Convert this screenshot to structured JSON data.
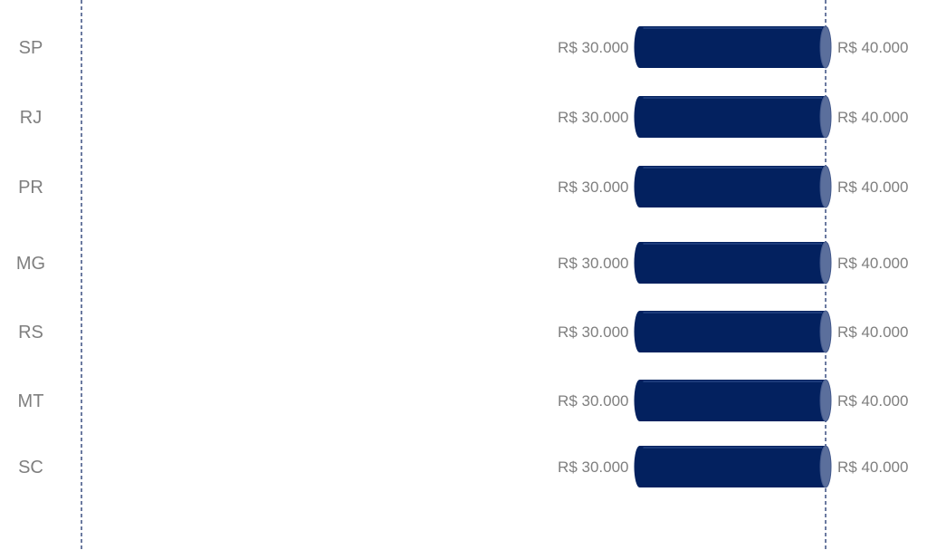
{
  "chart_data": {
    "type": "bar",
    "orientation": "horizontal",
    "style": "cylinder range bars",
    "categories": [
      "SP",
      "RJ",
      "PR",
      "MG",
      "RS",
      "MT",
      "SC"
    ],
    "series": [
      {
        "values": [
          [
            30000,
            40000
          ],
          [
            30000,
            40000
          ],
          [
            30000,
            40000
          ],
          [
            30000,
            40000
          ],
          [
            30000,
            40000
          ],
          [
            30000,
            40000
          ],
          [
            30000,
            40000
          ]
        ]
      }
    ],
    "start_labels": [
      "R$ 30.000",
      "R$ 30.000",
      "R$ 30.000",
      "R$ 30.000",
      "R$ 30.000",
      "R$ 30.000",
      "R$ 30.000"
    ],
    "end_labels": [
      "R$ 40.000",
      "R$ 40.000",
      "R$ 40.000",
      "R$ 40.000",
      "R$ 40.000",
      "R$ 40.000",
      "R$ 40.000"
    ],
    "reference_lines": [
      0,
      40000
    ],
    "xlim": [
      0,
      40000
    ],
    "grid": false,
    "legend": "none",
    "title": "",
    "xlabel": "",
    "ylabel": ""
  },
  "colors": {
    "bar": "#03215f",
    "bar_cap": "#5b6f9c",
    "text": "#7f7f7f",
    "reference_line": "#3a4e80"
  }
}
